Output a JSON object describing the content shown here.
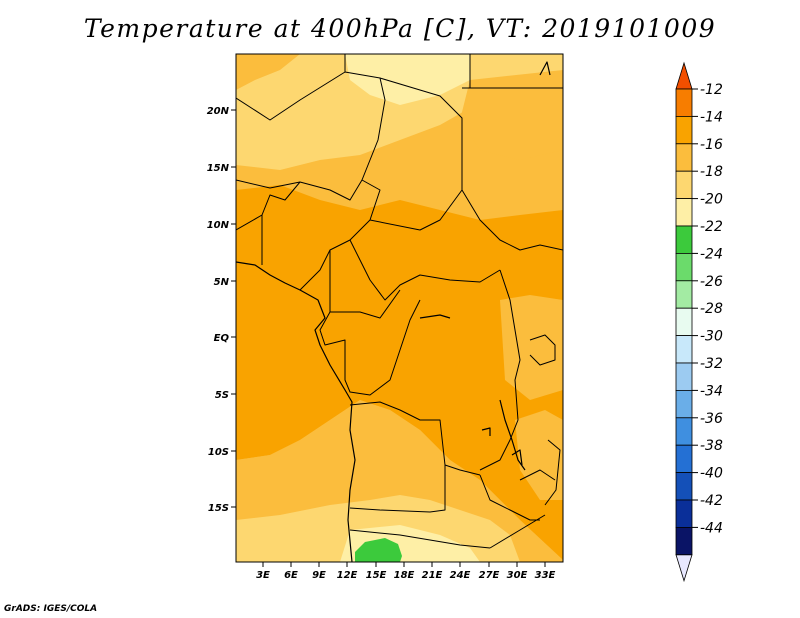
{
  "title": "Temperature at 400hPa [C], VT: 2019101009",
  "credit": "GrADS: IGES/COLA",
  "map": {
    "lon_ticks": [
      "3E",
      "6E",
      "9E",
      "12E",
      "15E",
      "18E",
      "21E",
      "24E",
      "27E",
      "30E",
      "33E"
    ],
    "lat_ticks": [
      "20N",
      "15N",
      "10N",
      "5N",
      "EQ",
      "5S",
      "10S",
      "15S"
    ],
    "colors": {
      "t12_14": "#f77d00",
      "t14_16": "#f9a300",
      "t16_18": "#fbbd3d",
      "t18_20": "#fdd770",
      "t20_22": "#feefa6",
      "t22_24": "#3cca3c"
    }
  },
  "colorbar": {
    "labels": [
      "-12",
      "-14",
      "-16",
      "-18",
      "-20",
      "-22",
      "-24",
      "-26",
      "-28",
      "-30",
      "-32",
      "-34",
      "-36",
      "-38",
      "-40",
      "-42",
      "-44"
    ],
    "colors": [
      "#f24f00",
      "#f77d00",
      "#f9a300",
      "#fbbd3d",
      "#fdd770",
      "#feefa6",
      "#3cca3c",
      "#6bdb6b",
      "#a3eba3",
      "#e8fbf0",
      "#c8e8fa",
      "#9ccbf1",
      "#6aaee8",
      "#3f8fe0",
      "#2470d4",
      "#1450b8",
      "#0a2f99",
      "#0a1466",
      "#e8e8ff"
    ]
  }
}
